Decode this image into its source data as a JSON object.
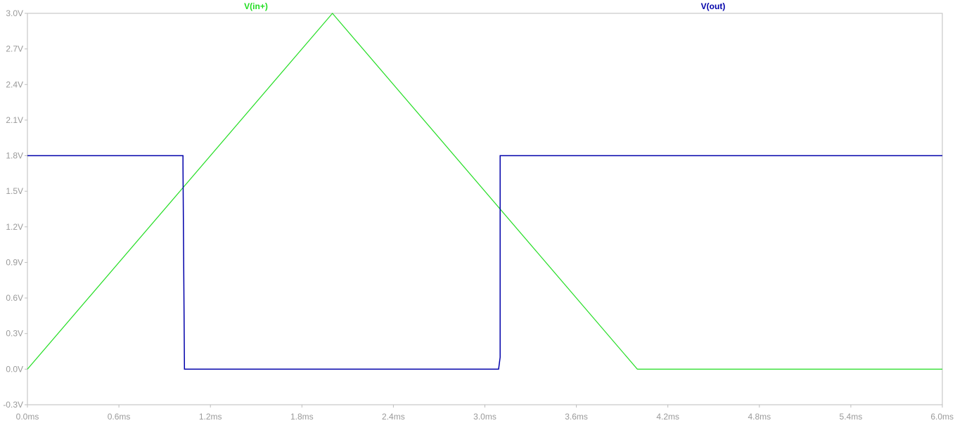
{
  "chart_data": {
    "type": "line",
    "x_unit": "ms",
    "y_unit": "V",
    "xlim": [
      0,
      6.0
    ],
    "ylim": [
      -0.3,
      3.0
    ],
    "x_ticks": [
      "0.0ms",
      "0.6ms",
      "1.2ms",
      "1.8ms",
      "2.4ms",
      "3.0ms",
      "3.6ms",
      "4.2ms",
      "4.8ms",
      "5.4ms",
      "6.0ms"
    ],
    "y_ticks": [
      "-0.3V",
      "0.0V",
      "0.3V",
      "0.6V",
      "0.9V",
      "1.2V",
      "1.5V",
      "1.8V",
      "2.1V",
      "2.4V",
      "2.7V",
      "3.0V"
    ],
    "grid": false,
    "legend_placement": "top",
    "series": [
      {
        "name": "V(in+)",
        "color": "#22dd22",
        "x": [
          0.0,
          2.0,
          4.0,
          6.0
        ],
        "y": [
          0.0,
          3.0,
          0.0,
          0.0
        ]
      },
      {
        "name": "V(out)",
        "color": "#0000aa",
        "x": [
          0.0,
          1.02,
          1.02,
          1.03,
          3.09,
          3.1,
          3.1,
          6.0
        ],
        "y": [
          1.8,
          1.8,
          1.72,
          0.0,
          0.0,
          0.1,
          1.8,
          1.8
        ]
      }
    ]
  }
}
